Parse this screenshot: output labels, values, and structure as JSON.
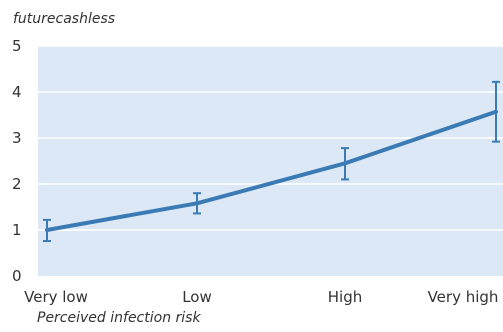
{
  "chart_data": {
    "type": "line",
    "title": "",
    "ylabel": "futurecashless",
    "xlabel": "Perceived infection risk",
    "categories": [
      "Very low",
      "Low",
      "High",
      "Very high"
    ],
    "ylim": [
      0,
      5
    ],
    "yticks": [
      0,
      1,
      2,
      3,
      4,
      5
    ],
    "grid": true,
    "series": [
      {
        "values": [
          1.0,
          1.58,
          2.45,
          3.57
        ],
        "error_low": [
          0.76,
          1.36,
          2.1,
          2.92
        ],
        "error_high": [
          1.22,
          1.8,
          2.78,
          4.22
        ]
      }
    ],
    "colors": {
      "plot_background": "#dce8f5",
      "line": "#3a7bb5",
      "grid": "#ffffff"
    }
  }
}
